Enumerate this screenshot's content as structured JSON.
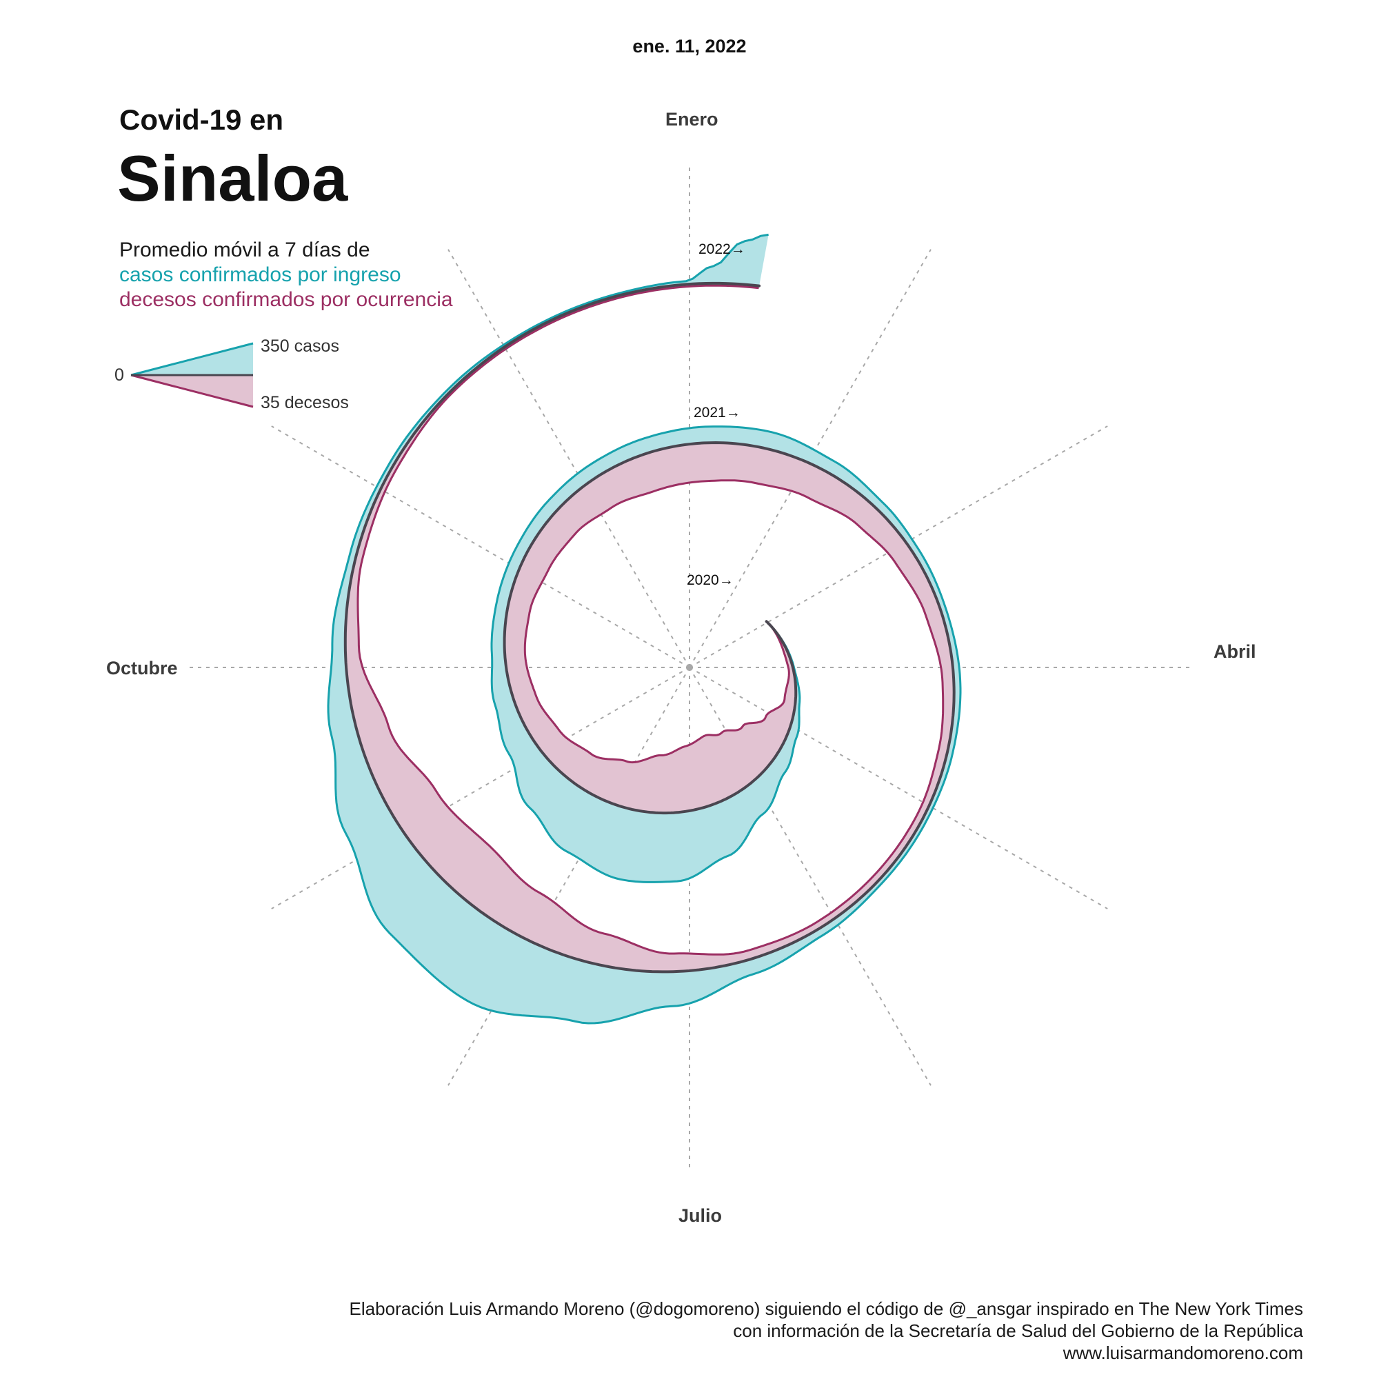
{
  "date": "ene. 11, 2022",
  "title_small": "Covid-19 en",
  "title_big": "Sinaloa",
  "subtitle": {
    "line1": "Promedio móvil a 7 días de",
    "line2": "casos confirmados por ingreso",
    "line3": "decesos confirmados por ocurrencia"
  },
  "legend": {
    "zero": "0",
    "cases": "350 casos",
    "deaths": "35 decesos"
  },
  "months": {
    "jan": "Enero",
    "apr": "Abril",
    "jul": "Julio",
    "oct": "Octubre"
  },
  "year_labels": [
    "2020→",
    "2021→",
    "2022→"
  ],
  "credits": {
    "line1": "Elaboración Luis Armando Moreno (@dogomoreno) siguiendo el código de @_ansgar inspirado en The New York Times",
    "line2": "con información de la Secretaría de Salud del Gobierno de la República",
    "line3": "www.luisarmandomoreno.com"
  },
  "colors": {
    "cases_line": "#17a2ad",
    "cases_fill": "#b3e2e6",
    "deaths_line": "#9c2f63",
    "deaths_fill": "#e2c3d2",
    "spiral": "#4a4650",
    "grid": "#a8a8a8"
  },
  "chart_data": {
    "type": "area",
    "layout": "spiral",
    "start_date": "2020-03-01",
    "end_date": "2022-01-11",
    "spokes": 12,
    "scale": {
      "cases_ref": 350,
      "deaths_ref": 35
    },
    "series": [
      {
        "name": "casos confirmados por ingreso",
        "side": "outward",
        "points": [
          [
            "2020-03-01",
            0
          ],
          [
            "2020-04-01",
            5
          ],
          [
            "2020-04-20",
            20
          ],
          [
            "2020-05-05",
            45
          ],
          [
            "2020-05-20",
            80
          ],
          [
            "2020-06-05",
            150
          ],
          [
            "2020-06-20",
            250
          ],
          [
            "2020-07-05",
            320
          ],
          [
            "2020-07-20",
            330
          ],
          [
            "2020-08-05",
            290
          ],
          [
            "2020-08-20",
            220
          ],
          [
            "2020-09-05",
            130
          ],
          [
            "2020-09-20",
            90
          ],
          [
            "2020-10-05",
            60
          ],
          [
            "2020-10-20",
            55
          ],
          [
            "2020-11-05",
            55
          ],
          [
            "2020-11-20",
            60
          ],
          [
            "2020-12-05",
            65
          ],
          [
            "2020-12-20",
            70
          ],
          [
            "2021-01-05",
            75
          ],
          [
            "2021-01-20",
            80
          ],
          [
            "2021-02-05",
            60
          ],
          [
            "2021-02-20",
            40
          ],
          [
            "2021-03-05",
            30
          ],
          [
            "2021-03-20",
            25
          ],
          [
            "2021-04-05",
            30
          ],
          [
            "2021-04-20",
            25
          ],
          [
            "2021-05-05",
            20
          ],
          [
            "2021-05-20",
            20
          ],
          [
            "2021-06-05",
            35
          ],
          [
            "2021-06-20",
            70
          ],
          [
            "2021-07-05",
            160
          ],
          [
            "2021-07-20",
            280
          ],
          [
            "2021-08-05",
            380
          ],
          [
            "2021-08-20",
            350
          ],
          [
            "2021-09-05",
            230
          ],
          [
            "2021-09-20",
            120
          ],
          [
            "2021-10-05",
            60
          ],
          [
            "2021-10-20",
            30
          ],
          [
            "2021-11-05",
            20
          ],
          [
            "2021-11-20",
            15
          ],
          [
            "2021-12-05",
            10
          ],
          [
            "2021-12-20",
            10
          ],
          [
            "2021-12-31",
            15
          ],
          [
            "2022-01-04",
            80
          ],
          [
            "2022-01-08",
            200
          ],
          [
            "2022-01-11",
            240
          ]
        ]
      },
      {
        "name": "decesos confirmados por ocurrencia",
        "side": "inward",
        "points": [
          [
            "2020-03-01",
            0
          ],
          [
            "2020-04-01",
            2
          ],
          [
            "2020-04-20",
            5
          ],
          [
            "2020-05-05",
            12
          ],
          [
            "2020-05-20",
            20
          ],
          [
            "2020-06-05",
            26
          ],
          [
            "2020-06-20",
            30
          ],
          [
            "2020-07-05",
            29
          ],
          [
            "2020-07-20",
            26
          ],
          [
            "2020-08-05",
            20
          ],
          [
            "2020-08-20",
            15
          ],
          [
            "2020-09-05",
            12
          ],
          [
            "2020-09-20",
            10
          ],
          [
            "2020-10-05",
            9
          ],
          [
            "2020-10-20",
            10
          ],
          [
            "2020-11-05",
            12
          ],
          [
            "2020-11-20",
            13
          ],
          [
            "2020-12-05",
            15
          ],
          [
            "2020-12-20",
            17
          ],
          [
            "2021-01-05",
            17
          ],
          [
            "2021-01-20",
            16
          ],
          [
            "2021-02-05",
            14
          ],
          [
            "2021-02-20",
            11
          ],
          [
            "2021-03-05",
            9
          ],
          [
            "2021-03-20",
            7
          ],
          [
            "2021-04-05",
            5
          ],
          [
            "2021-04-20",
            4
          ],
          [
            "2021-05-05",
            3
          ],
          [
            "2021-05-20",
            3
          ],
          [
            "2021-06-05",
            3
          ],
          [
            "2021-06-20",
            4
          ],
          [
            "2021-07-05",
            8
          ],
          [
            "2021-07-20",
            14
          ],
          [
            "2021-08-05",
            21
          ],
          [
            "2021-08-20",
            25
          ],
          [
            "2021-09-05",
            22
          ],
          [
            "2021-09-20",
            14
          ],
          [
            "2021-10-05",
            6
          ],
          [
            "2021-10-20",
            3
          ],
          [
            "2021-11-05",
            2
          ],
          [
            "2021-11-20",
            1
          ],
          [
            "2021-12-05",
            1
          ],
          [
            "2021-12-20",
            1
          ],
          [
            "2021-12-31",
            1
          ],
          [
            "2022-01-11",
            1
          ]
        ]
      }
    ]
  }
}
